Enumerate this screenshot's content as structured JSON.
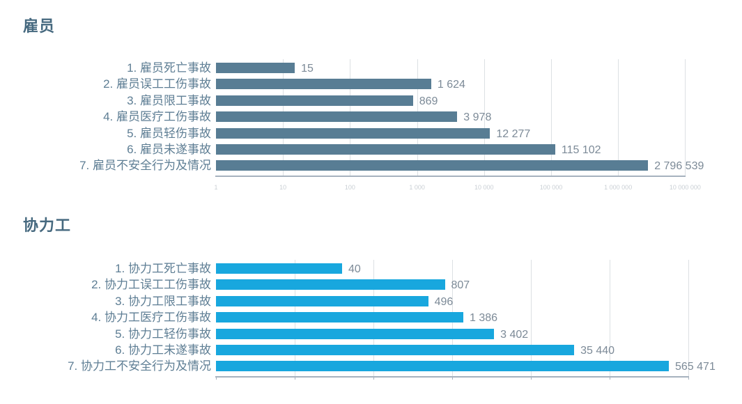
{
  "page": {
    "background": "#ffffff"
  },
  "chart_data": [
    {
      "type": "bar",
      "orientation": "horizontal",
      "title": "雇员",
      "categories": [
        "1. 雇员死亡事故",
        "2. 雇员误工工伤事故",
        "3. 雇员限工事故",
        "4. 雇员医疗工伤事故",
        "5. 雇员轻伤事故",
        "6. 雇员未遂事故",
        "7. 雇员不安全行为及情况"
      ],
      "values": [
        15,
        1624,
        869,
        3978,
        12277,
        115102,
        2796539
      ],
      "value_labels": [
        "15",
        "1 624",
        "869",
        "3 978",
        "12 277",
        "115 102",
        "2 796 539"
      ],
      "x_scale": "log10",
      "x_min": 1,
      "x_max": 10000000,
      "x_tick_labels": [
        "1",
        "10",
        "100",
        "1 000",
        "10 000",
        "100 000",
        "1 000 000",
        "10 000 000"
      ],
      "grid": true,
      "legend": "none",
      "bar_color": "#587d94",
      "title_color": "#46697f",
      "label_color": "#5e7e94",
      "value_color": "#7c8a97"
    },
    {
      "type": "bar",
      "orientation": "horizontal",
      "title": "协力工",
      "categories": [
        "1. 协力工死亡事故",
        "2. 协力工误工工伤事故",
        "3. 协力工限工事故",
        "4. 协力工医疗工伤事故",
        "5. 协力工轻伤事故",
        "6. 协力工未遂事故",
        "7. 协力工不安全行为及情况"
      ],
      "values": [
        40,
        807,
        496,
        1386,
        3402,
        35440,
        565471
      ],
      "value_labels": [
        "40",
        "807",
        "496",
        "1 386",
        "3 402",
        "35 440",
        "565 471"
      ],
      "x_scale": "log10",
      "x_min": 1,
      "x_max": 1000000,
      "x_tick_labels": [],
      "grid": true,
      "legend": "none",
      "bar_color": "#18a7de",
      "title_color": "#46697f",
      "label_color": "#5e7e94",
      "value_color": "#7c8a97"
    }
  ]
}
